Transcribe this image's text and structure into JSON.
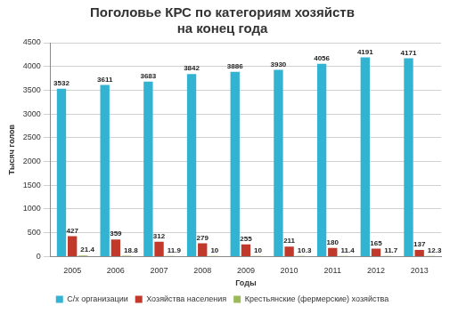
{
  "chart_data": {
    "type": "bar",
    "title": [
      "Поголовье КРС по категориям хозяйств",
      "на конец года"
    ],
    "x_label": "Годы",
    "y_label": "Тысяч голов",
    "categories": [
      "2005",
      "2006",
      "2007",
      "2008",
      "2009",
      "2010",
      "2011",
      "2012",
      "2013"
    ],
    "series": [
      {
        "name": "С/х организации",
        "color": "#31b3d1",
        "values": [
          3532,
          3611,
          3683,
          3842,
          3886,
          3930,
          4056,
          4191,
          4171
        ]
      },
      {
        "name": "Хозяйства населения",
        "color": "#c0392b",
        "values": [
          427,
          359,
          312,
          279,
          255,
          211,
          180,
          165,
          137
        ]
      },
      {
        "name": "Крестьянские (фермерские) хозяйства",
        "color": "#9bbb59",
        "values": [
          21.4,
          18.8,
          11.9,
          10,
          10,
          10.3,
          11.4,
          11.7,
          12.3
        ]
      }
    ],
    "ylim": [
      0,
      4500
    ],
    "yticks": [
      0,
      500,
      1000,
      1500,
      2000,
      2500,
      3000,
      3500,
      4000,
      4500
    ],
    "grid": true,
    "legend": "bottom",
    "data_labels": true
  }
}
